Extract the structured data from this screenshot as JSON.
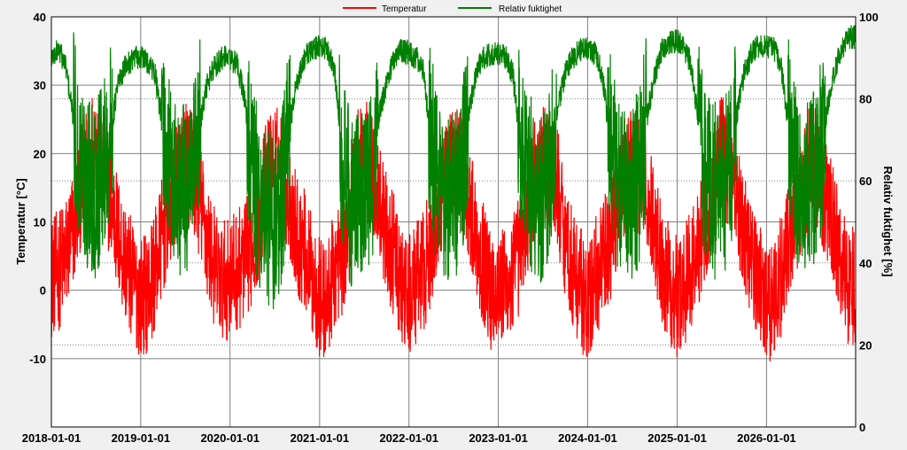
{
  "chart_data": {
    "type": "line",
    "title": "",
    "legend": {
      "placement": "top-center",
      "entries": [
        {
          "label": "Temperatur",
          "color": "#ff0000"
        },
        {
          "label": "Relativ fuktighet",
          "color": "#008000"
        }
      ]
    },
    "x_axis": {
      "type": "date",
      "range": [
        "2018-01-01",
        "2026-12-31"
      ],
      "tick_labels": [
        "2018-01-01",
        "2019-01-01",
        "2020-01-01",
        "2021-01-01",
        "2022-01-01",
        "2023-01-01",
        "2024-01-01",
        "2025-01-01",
        "2026-01-01"
      ],
      "grid": true
    },
    "y_axis_left": {
      "label": "Temperatur [°C]",
      "range": [
        -20,
        40
      ],
      "tick_labels": [
        "-10",
        "0",
        "10",
        "20",
        "30",
        "40"
      ],
      "tick_values": [
        -10,
        0,
        10,
        20,
        30,
        40
      ],
      "grid": true
    },
    "y_axis_right": {
      "label": "Relativ fuktighet [%]",
      "range": [
        0,
        100
      ],
      "tick_labels": [
        "0",
        "20",
        "40",
        "60",
        "80",
        "100"
      ],
      "tick_values": [
        0,
        20,
        40,
        60,
        80,
        100
      ],
      "grid": "dotted"
    },
    "series": [
      {
        "name": "Temperatur",
        "axis": "left",
        "color": "#ff0000",
        "x": [
          "2018-01-01",
          "2018-02-01",
          "2018-03-01",
          "2018-04-01",
          "2018-05-01",
          "2018-06-01",
          "2018-07-01",
          "2018-08-01",
          "2018-09-01",
          "2018-10-01",
          "2018-11-01",
          "2018-12-01",
          "2019-01-01",
          "2019-02-01",
          "2019-03-01",
          "2019-04-01",
          "2019-05-01",
          "2019-06-01",
          "2019-07-01",
          "2019-08-01",
          "2019-09-01",
          "2019-10-01",
          "2019-11-01",
          "2019-12-01",
          "2020-01-01",
          "2020-02-01",
          "2020-03-01",
          "2020-04-01",
          "2020-05-01",
          "2020-06-01",
          "2020-07-01",
          "2020-08-01",
          "2020-09-01",
          "2020-10-01",
          "2020-11-01",
          "2020-12-01",
          "2021-01-01",
          "2021-02-01",
          "2021-03-01",
          "2021-04-01",
          "2021-05-01",
          "2021-06-01",
          "2021-07-01",
          "2021-08-01",
          "2021-09-01",
          "2021-10-01",
          "2021-11-01",
          "2021-12-01",
          "2022-01-01",
          "2022-02-01",
          "2022-03-01",
          "2022-04-01",
          "2022-05-01",
          "2022-06-01",
          "2022-07-01",
          "2022-08-01",
          "2022-09-01",
          "2022-10-01",
          "2022-11-01",
          "2022-12-01",
          "2023-01-01",
          "2023-02-01",
          "2023-03-01",
          "2023-04-01",
          "2023-05-01",
          "2023-06-01",
          "2023-07-01",
          "2023-08-01",
          "2023-09-01",
          "2023-10-01",
          "2023-11-01",
          "2023-12-01",
          "2024-01-01",
          "2024-02-01",
          "2024-03-01",
          "2024-04-01",
          "2024-05-01",
          "2024-06-01",
          "2024-07-01",
          "2024-08-01",
          "2024-09-01",
          "2024-10-01",
          "2024-11-01",
          "2024-12-01",
          "2025-01-01",
          "2025-02-01",
          "2025-03-01",
          "2025-04-01",
          "2025-05-01",
          "2025-06-01",
          "2025-07-01",
          "2025-08-01",
          "2025-09-01",
          "2025-10-01",
          "2025-11-01",
          "2025-12-01",
          "2026-01-01",
          "2026-02-01",
          "2026-03-01",
          "2026-04-01",
          "2026-05-01",
          "2026-06-01",
          "2026-07-01",
          "2026-08-01",
          "2026-09-01",
          "2026-10-01",
          "2026-11-01",
          "2026-12-01"
        ],
        "y": [
          2,
          3,
          5,
          9,
          15,
          19,
          22,
          18,
          13,
          8,
          4,
          1,
          -1,
          0,
          3,
          8,
          12,
          17,
          19,
          17,
          13,
          7,
          3,
          1,
          2,
          3,
          4,
          7,
          11,
          17,
          18,
          18,
          13,
          8,
          6,
          2,
          -1,
          -2,
          3,
          5,
          10,
          19,
          20,
          17,
          14,
          8,
          5,
          0,
          -1,
          1,
          3,
          6,
          11,
          15,
          19,
          18,
          13,
          8,
          4,
          0,
          1,
          0,
          2,
          6,
          11,
          17,
          18,
          17,
          15,
          8,
          3,
          1,
          -3,
          2,
          4,
          7,
          13,
          17,
          18,
          17,
          14,
          9,
          4,
          1,
          -1,
          1,
          3,
          7,
          11,
          16,
          20,
          18,
          14,
          9,
          4,
          2,
          -2,
          -1,
          2,
          7,
          11,
          15,
          19,
          17,
          13,
          9,
          4,
          1
        ]
      },
      {
        "name": "Relativ fuktighet",
        "axis": "right",
        "color": "#008000",
        "x": [
          "2018-01-01",
          "2018-02-01",
          "2018-03-01",
          "2018-04-01",
          "2018-05-01",
          "2018-06-01",
          "2018-07-01",
          "2018-08-01",
          "2018-09-01",
          "2018-10-01",
          "2018-11-01",
          "2018-12-01",
          "2019-01-01",
          "2019-02-01",
          "2019-03-01",
          "2019-04-01",
          "2019-05-01",
          "2019-06-01",
          "2019-07-01",
          "2019-08-01",
          "2019-09-01",
          "2019-10-01",
          "2019-11-01",
          "2019-12-01",
          "2020-01-01",
          "2020-02-01",
          "2020-03-01",
          "2020-04-01",
          "2020-05-01",
          "2020-06-01",
          "2020-07-01",
          "2020-08-01",
          "2020-09-01",
          "2020-10-01",
          "2020-11-01",
          "2020-12-01",
          "2021-01-01",
          "2021-02-01",
          "2021-03-01",
          "2021-04-01",
          "2021-05-01",
          "2021-06-01",
          "2021-07-01",
          "2021-08-01",
          "2021-09-01",
          "2021-10-01",
          "2021-11-01",
          "2021-12-01",
          "2022-01-01",
          "2022-02-01",
          "2022-03-01",
          "2022-04-01",
          "2022-05-01",
          "2022-06-01",
          "2022-07-01",
          "2022-08-01",
          "2022-09-01",
          "2022-10-01",
          "2022-11-01",
          "2022-12-01",
          "2023-01-01",
          "2023-02-01",
          "2023-03-01",
          "2023-04-01",
          "2023-05-01",
          "2023-06-01",
          "2023-07-01",
          "2023-08-01",
          "2023-09-01",
          "2023-10-01",
          "2023-11-01",
          "2023-12-01",
          "2024-01-01",
          "2024-02-01",
          "2024-03-01",
          "2024-04-01",
          "2024-05-01",
          "2024-06-01",
          "2024-07-01",
          "2024-08-01",
          "2024-09-01",
          "2024-10-01",
          "2024-11-01",
          "2024-12-01",
          "2025-01-01",
          "2025-02-01",
          "2025-03-01",
          "2025-04-01",
          "2025-05-01",
          "2025-06-01",
          "2025-07-01",
          "2025-08-01",
          "2025-09-01",
          "2025-10-01",
          "2025-11-01",
          "2025-12-01",
          "2026-01-01",
          "2026-02-01",
          "2026-03-01",
          "2026-04-01",
          "2026-05-01",
          "2026-06-01",
          "2026-07-01",
          "2026-08-01",
          "2026-09-01",
          "2026-10-01",
          "2026-11-01",
          "2026-12-01"
        ],
        "y": [
          90,
          92,
          88,
          75,
          62,
          60,
          58,
          64,
          72,
          84,
          88,
          90,
          90,
          89,
          86,
          72,
          62,
          58,
          57,
          60,
          74,
          84,
          88,
          90,
          90,
          88,
          80,
          62,
          54,
          52,
          50,
          56,
          74,
          84,
          90,
          92,
          93,
          92,
          88,
          68,
          56,
          55,
          55,
          60,
          76,
          84,
          90,
          92,
          91,
          90,
          87,
          70,
          58,
          55,
          54,
          60,
          76,
          86,
          90,
          91,
          91,
          90,
          86,
          70,
          60,
          58,
          56,
          62,
          78,
          86,
          90,
          92,
          92,
          91,
          86,
          70,
          60,
          56,
          56,
          62,
          76,
          86,
          92,
          94,
          94,
          92,
          88,
          72,
          60,
          58,
          56,
          62,
          76,
          86,
          91,
          93,
          93,
          92,
          88,
          74,
          62,
          60,
          58,
          64,
          76,
          86,
          92,
          95
        ]
      }
    ]
  }
}
